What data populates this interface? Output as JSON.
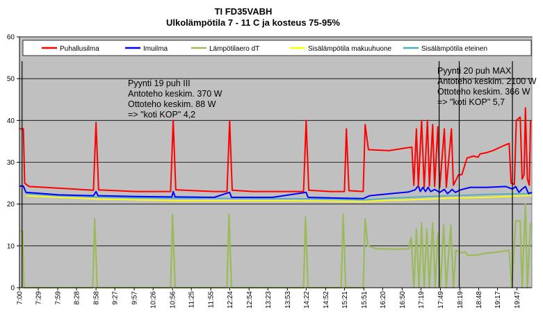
{
  "chart_data": {
    "type": "line",
    "title": "TI FD35VABH",
    "subtitle": "Ulkolämpötila 7 - 11 C ja kosteus 75-95%",
    "ylim": [
      0,
      60
    ],
    "yticks": [
      0,
      10,
      20,
      30,
      40,
      50,
      60
    ],
    "x_tick_labels": [
      "7:00",
      "7:29",
      "7:59",
      "8:28",
      "8:58",
      "9:27",
      "9:57",
      "10:26",
      "10:56",
      "11:25",
      "11:55",
      "12:24",
      "12:54",
      "13:23",
      "13:53",
      "14:22",
      "14:52",
      "15:21",
      "15:51",
      "16:20",
      "16:50",
      "17:19",
      "17:49",
      "18:19",
      "18:48",
      "19:17",
      "19:47"
    ],
    "x_start": "7:00",
    "x_end": "20:10",
    "grid": true,
    "background": "#c0c0c0",
    "legend_position": "top",
    "series": [
      {
        "name": "Puhallusilma",
        "color": "#ff0000",
        "points": [
          [
            "7:00",
            38
          ],
          [
            "7:06",
            38
          ],
          [
            "7:08",
            25
          ],
          [
            "7:15",
            24.2
          ],
          [
            "8:00",
            23.8
          ],
          [
            "8:54",
            23.3
          ],
          [
            "8:58",
            39.5
          ],
          [
            "9:02",
            23.4
          ],
          [
            "10:00",
            23
          ],
          [
            "10:53",
            23
          ],
          [
            "10:57",
            40
          ],
          [
            "11:01",
            23.4
          ],
          [
            "12:00",
            23
          ],
          [
            "12:20",
            23
          ],
          [
            "12:24",
            40
          ],
          [
            "12:28",
            23.3
          ],
          [
            "13:00",
            23
          ],
          [
            "14:18",
            23
          ],
          [
            "14:22",
            40
          ],
          [
            "14:26",
            23.3
          ],
          [
            "15:00",
            23
          ],
          [
            "15:21",
            23
          ],
          [
            "15:24",
            38
          ],
          [
            "15:28",
            23.2
          ],
          [
            "15:50",
            23
          ],
          [
            "15:53",
            39
          ],
          [
            "15:58",
            33
          ],
          [
            "16:30",
            32.8
          ],
          [
            "16:55",
            33.4
          ],
          [
            "17:05",
            33.6
          ],
          [
            "17:08",
            24.5
          ],
          [
            "17:12",
            38
          ],
          [
            "17:15",
            24.2
          ],
          [
            "17:20",
            40
          ],
          [
            "17:24",
            24
          ],
          [
            "17:29",
            40
          ],
          [
            "17:32",
            24.3
          ],
          [
            "17:37",
            39
          ],
          [
            "17:40",
            24.2
          ],
          [
            "17:45",
            38.5
          ],
          [
            "17:48",
            24
          ],
          [
            "17:55",
            38
          ],
          [
            "17:58",
            24
          ],
          [
            "18:06",
            38
          ],
          [
            "18:09",
            24.5
          ],
          [
            "18:17",
            27
          ],
          [
            "18:22",
            27
          ],
          [
            "18:30",
            31
          ],
          [
            "18:40",
            31.5
          ],
          [
            "18:47",
            31.2
          ],
          [
            "18:50",
            32
          ],
          [
            "19:00",
            32.3
          ],
          [
            "19:10",
            32.8
          ],
          [
            "19:27",
            34
          ],
          [
            "19:35",
            34.5
          ],
          [
            "19:38",
            25
          ],
          [
            "19:43",
            24.7
          ],
          [
            "19:46",
            40
          ],
          [
            "19:52",
            40.8
          ],
          [
            "19:55",
            26
          ],
          [
            "19:58",
            27
          ],
          [
            "20:00",
            43
          ],
          [
            "20:03",
            26
          ],
          [
            "20:06",
            24.5
          ],
          [
            "20:08",
            40
          ]
        ]
      },
      {
        "name": "Imuilma",
        "color": "#0000ff",
        "points": [
          [
            "7:00",
            24.3
          ],
          [
            "7:06",
            24.3
          ],
          [
            "7:10",
            22.8
          ],
          [
            "8:00",
            22.2
          ],
          [
            "8:54",
            22
          ],
          [
            "8:58",
            23
          ],
          [
            "9:01",
            22
          ],
          [
            "10:00",
            21.8
          ],
          [
            "10:55",
            21.7
          ],
          [
            "10:57",
            23
          ],
          [
            "11:00",
            21.7
          ],
          [
            "12:00",
            21.6
          ],
          [
            "12:24",
            22.8
          ],
          [
            "12:27",
            21.6
          ],
          [
            "13:30",
            21.6
          ],
          [
            "14:22",
            22.8
          ],
          [
            "14:25",
            21.6
          ],
          [
            "15:21",
            21.4
          ],
          [
            "15:50",
            21.3
          ],
          [
            "16:00",
            22
          ],
          [
            "16:40",
            22.6
          ],
          [
            "17:00",
            22.9
          ],
          [
            "17:10",
            23.4
          ],
          [
            "17:15",
            24.4
          ],
          [
            "17:18",
            23
          ],
          [
            "17:22",
            24
          ],
          [
            "17:26",
            23
          ],
          [
            "17:30",
            24
          ],
          [
            "17:34",
            23
          ],
          [
            "17:40",
            23.5
          ],
          [
            "17:48",
            22.8
          ],
          [
            "17:55",
            23.5
          ],
          [
            "18:00",
            22.5
          ],
          [
            "18:07",
            23.5
          ],
          [
            "18:12",
            22.8
          ],
          [
            "18:20",
            23.4
          ],
          [
            "18:35",
            24
          ],
          [
            "19:00",
            24
          ],
          [
            "19:30",
            24.2
          ],
          [
            "19:40",
            23.6
          ],
          [
            "19:45",
            24.2
          ],
          [
            "19:50",
            22.8
          ],
          [
            "19:55",
            23.6
          ],
          [
            "20:00",
            24.2
          ],
          [
            "20:05",
            22.5
          ],
          [
            "20:10",
            22.8
          ]
        ]
      },
      {
        "name": "Lämpötilaero dT",
        "color": "#9bbb59",
        "points": [
          [
            "7:00",
            13.5
          ],
          [
            "7:05",
            13.5
          ],
          [
            "7:07",
            0
          ],
          [
            "8:53",
            0
          ],
          [
            "8:56",
            16.5
          ],
          [
            "9:00",
            0
          ],
          [
            "10:53",
            0
          ],
          [
            "10:56",
            17.5
          ],
          [
            "11:00",
            0
          ],
          [
            "12:20",
            0
          ],
          [
            "12:23",
            17.5
          ],
          [
            "12:27",
            0
          ],
          [
            "14:18",
            0
          ],
          [
            "14:21",
            17
          ],
          [
            "14:25",
            0
          ],
          [
            "15:16",
            0
          ],
          [
            "15:19",
            17.5
          ],
          [
            "15:23",
            0
          ],
          [
            "15:50",
            0
          ],
          [
            "15:53",
            16.5
          ],
          [
            "15:57",
            10
          ],
          [
            "16:10",
            9.3
          ],
          [
            "16:40",
            9.2
          ],
          [
            "17:00",
            9.3
          ],
          [
            "17:04",
            12
          ],
          [
            "17:08",
            0
          ],
          [
            "17:12",
            14
          ],
          [
            "17:16",
            0
          ],
          [
            "17:20",
            15.5
          ],
          [
            "17:24",
            0
          ],
          [
            "17:28",
            14
          ],
          [
            "17:32",
            0
          ],
          [
            "17:37",
            15.5
          ],
          [
            "17:41",
            0
          ],
          [
            "17:45",
            13
          ],
          [
            "17:49",
            0
          ],
          [
            "17:54",
            15
          ],
          [
            "17:58",
            0
          ],
          [
            "18:05",
            15
          ],
          [
            "18:09",
            0
          ],
          [
            "18:13",
            9
          ],
          [
            "18:20",
            8.4
          ],
          [
            "18:28",
            8.5
          ],
          [
            "18:30",
            7.8
          ],
          [
            "18:45",
            7.8
          ],
          [
            "19:00",
            8.3
          ],
          [
            "19:15",
            8.5
          ],
          [
            "19:25",
            8.7
          ],
          [
            "19:35",
            9
          ],
          [
            "19:39",
            0
          ],
          [
            "19:45",
            16
          ],
          [
            "19:52",
            16
          ],
          [
            "19:55",
            0
          ],
          [
            "20:00",
            20
          ],
          [
            "20:03",
            0
          ],
          [
            "20:08",
            15.5
          ]
        ]
      },
      {
        "name": "Sisälämpötila makuuhuone",
        "color": "#ffff00",
        "points": [
          [
            "7:10",
            22
          ],
          [
            "8:00",
            21.6
          ],
          [
            "9:00",
            21.2
          ],
          [
            "10:00",
            21
          ],
          [
            "11:00",
            20.8
          ],
          [
            "12:00",
            20.8
          ],
          [
            "13:00",
            20.8
          ],
          [
            "14:00",
            20.8
          ],
          [
            "15:00",
            20.7
          ],
          [
            "15:50",
            20.6
          ],
          [
            "16:30",
            20.9
          ],
          [
            "17:00",
            21
          ],
          [
            "17:30",
            21.2
          ],
          [
            "18:00",
            21.4
          ],
          [
            "18:30",
            21.5
          ],
          [
            "19:00",
            21.6
          ],
          [
            "19:30",
            21.8
          ],
          [
            "20:00",
            22
          ],
          [
            "20:10",
            22
          ]
        ]
      },
      {
        "name": "Sisälämpötila eteinen",
        "color": "#4bacc6",
        "points": [
          [
            "7:10",
            22.5
          ],
          [
            "8:00",
            22
          ],
          [
            "9:00",
            21.7
          ],
          [
            "10:00",
            21.5
          ],
          [
            "11:00",
            21.4
          ],
          [
            "12:00",
            21.4
          ],
          [
            "13:00",
            21.3
          ],
          [
            "14:00",
            21.3
          ],
          [
            "15:00",
            21.2
          ],
          [
            "15:50",
            21
          ],
          [
            "16:30",
            21.4
          ],
          [
            "17:00",
            21.6
          ],
          [
            "17:30",
            21.8
          ],
          [
            "18:00",
            22
          ],
          [
            "18:30",
            22.1
          ],
          [
            "19:00",
            22.3
          ],
          [
            "19:30",
            22.4
          ],
          [
            "20:00",
            22.5
          ],
          [
            "20:10",
            22.6
          ]
        ]
      }
    ],
    "vertical_markers": [
      "7:04",
      "17:47",
      "18:18",
      "19:40"
    ],
    "annotations": [
      {
        "lines": [
          "Pyynti 19 puh III",
          "Antoteho keskim. 370 W",
          "Ottoteho keskim. 88 W",
          "=> \"koti KOP\" 4,2"
        ]
      },
      {
        "lines": [
          "Pyynti 20 puh MAX",
          "Antoteho keskim. 2100 W",
          "Ottoteho keskim. 366 W",
          "=> \"koti KOP\" 5,7"
        ]
      }
    ]
  }
}
